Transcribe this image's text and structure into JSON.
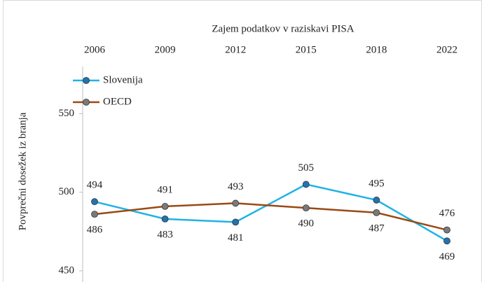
{
  "chart_data": {
    "type": "line",
    "x_label": "Zajem podatkov v raziskavi PISA",
    "y_label": "Povprečni dosežek iz branja",
    "categories": [
      "2006",
      "2009",
      "2012",
      "2015",
      "2018",
      "2022"
    ],
    "series": [
      {
        "name": "Slovenija",
        "color": "#20b2e6",
        "marker_color": "#2373b0",
        "values": [
          494,
          483,
          481,
          505,
          495,
          469
        ]
      },
      {
        "name": "OECD",
        "color": "#9a4a14",
        "marker_color": "#7a7a7a",
        "values": [
          486,
          491,
          493,
          490,
          487,
          476
        ]
      }
    ],
    "ylim": [
      450,
      580
    ],
    "yticks": [
      450,
      500,
      550
    ],
    "legend": "upper left",
    "grid": false
  }
}
